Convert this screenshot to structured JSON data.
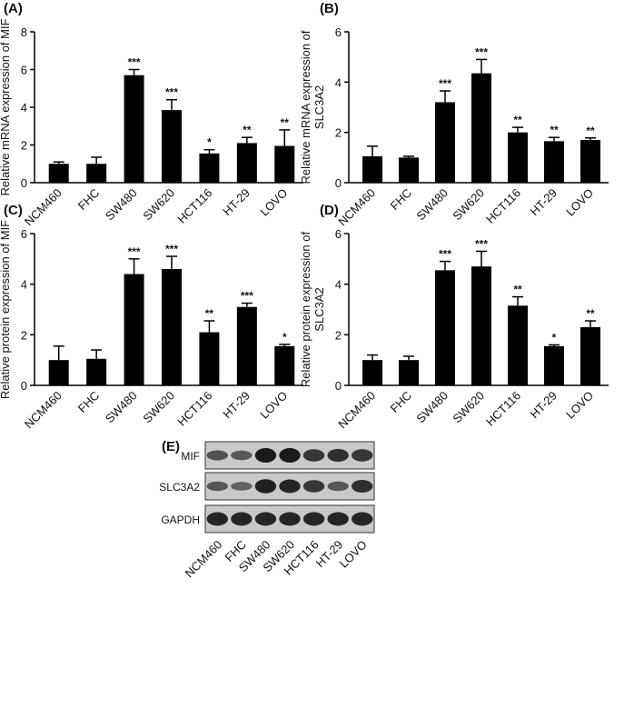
{
  "chart_data": [
    {
      "type": "bar",
      "panel": "(A)",
      "ylabel": [
        "Relative mRNA expression of MIF"
      ],
      "categories": [
        "NCM460",
        "FHC",
        "SW480",
        "SW620",
        "HCT116",
        "HT-29",
        "LOVO"
      ],
      "values": [
        1.0,
        1.0,
        5.7,
        3.85,
        1.55,
        2.1,
        1.95
      ],
      "errors": [
        0.1,
        0.35,
        0.3,
        0.55,
        0.2,
        0.3,
        0.85
      ],
      "annotations": [
        null,
        null,
        "***",
        "***",
        "*",
        "**",
        "**"
      ],
      "color": "#000000",
      "ylim": [
        0,
        8
      ],
      "yticks": [
        0,
        2,
        4,
        6,
        8
      ]
    },
    {
      "type": "bar",
      "panel": "(B)",
      "ylabel": [
        "Relative mRNA expression of",
        "SLC3A2"
      ],
      "categories": [
        "NCM460",
        "FHC",
        "SW480",
        "SW620",
        "HCT116",
        "HT-29",
        "LOVO"
      ],
      "values": [
        1.05,
        1.0,
        3.2,
        4.35,
        2.0,
        1.65,
        1.7
      ],
      "errors": [
        0.4,
        0.05,
        0.45,
        0.55,
        0.2,
        0.15,
        0.08
      ],
      "annotations": [
        null,
        null,
        "***",
        "***",
        "**",
        "**",
        "**"
      ],
      "color": "#000000",
      "ylim": [
        0,
        6
      ],
      "yticks": [
        0,
        2,
        4,
        6
      ]
    },
    {
      "type": "bar",
      "panel": "(C)",
      "ylabel": [
        "Relative protein expression of MIF"
      ],
      "categories": [
        "NCM460",
        "FHC",
        "SW480",
        "SW620",
        "HCT116",
        "HT-29",
        "LOVO"
      ],
      "values": [
        1.0,
        1.05,
        4.4,
        4.6,
        2.1,
        3.1,
        1.55
      ],
      "errors": [
        0.55,
        0.35,
        0.6,
        0.5,
        0.45,
        0.15,
        0.07
      ],
      "annotations": [
        null,
        null,
        "***",
        "***",
        "**",
        "***",
        "*"
      ],
      "color": "#000000",
      "ylim": [
        0,
        6
      ],
      "yticks": [
        0,
        2,
        4,
        6
      ]
    },
    {
      "type": "bar",
      "panel": "(D)",
      "ylabel": [
        "Relative protein expression of",
        "SLC3A2"
      ],
      "categories": [
        "NCM460",
        "FHC",
        "SW480",
        "SW620",
        "HCT116",
        "HT-29",
        "LOVO"
      ],
      "values": [
        1.0,
        1.0,
        4.55,
        4.7,
        3.15,
        1.55,
        2.3
      ],
      "errors": [
        0.2,
        0.15,
        0.35,
        0.6,
        0.35,
        0.05,
        0.25
      ],
      "annotations": [
        null,
        null,
        "***",
        "***",
        "**",
        "*",
        "**"
      ],
      "color": "#000000",
      "ylim": [
        0,
        6
      ],
      "yticks": [
        0,
        2,
        4,
        6
      ]
    }
  ],
  "blot": {
    "panel": "(E)",
    "rows": [
      "MIF",
      "SLC3A2",
      "GAPDH"
    ],
    "categories": [
      "NCM460",
      "FHC",
      "SW480",
      "SW620",
      "HCT116",
      "HT-29",
      "LOVO"
    ]
  }
}
